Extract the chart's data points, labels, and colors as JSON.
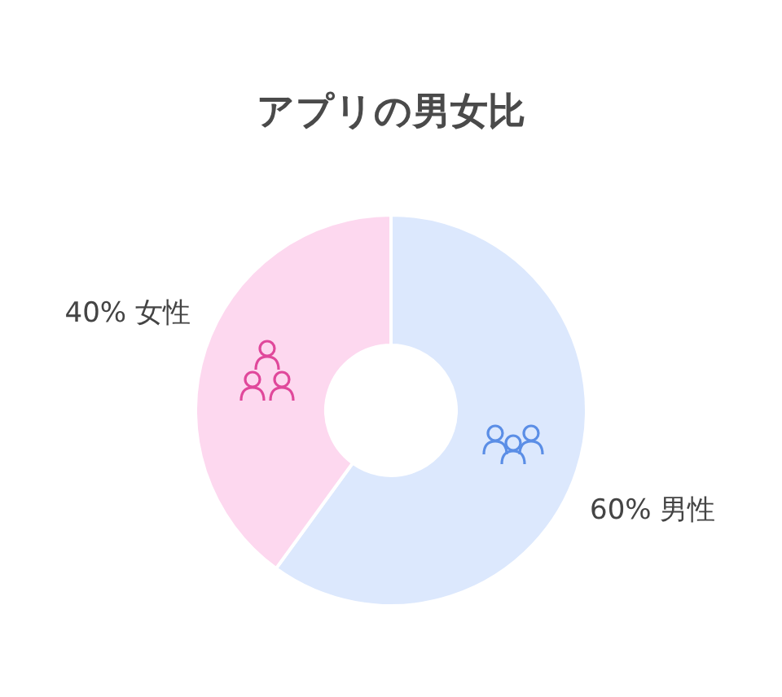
{
  "chart_data": {
    "type": "donut",
    "title": "アプリの男女比",
    "categories": [
      "男性",
      "女性"
    ],
    "values": [
      60,
      40
    ],
    "colors": [
      "#dce8fd",
      "#fdd8ef"
    ],
    "value_labels": [
      "60%",
      "40%"
    ]
  }
}
